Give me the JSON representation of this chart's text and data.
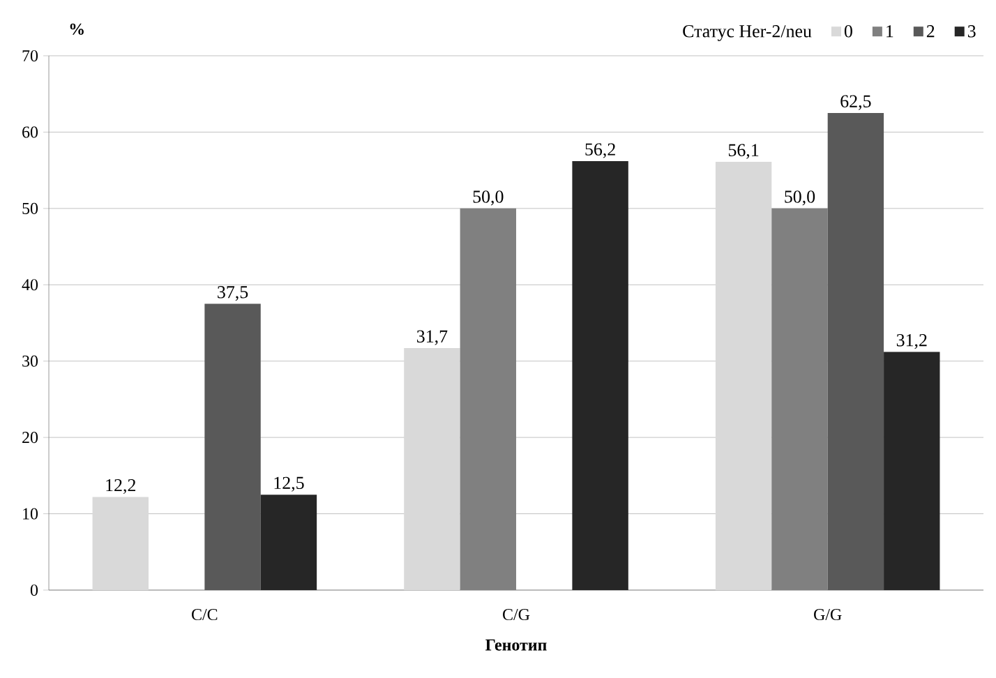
{
  "chart_data": {
    "type": "bar",
    "xlabel": "Генотип",
    "ylabel": "%",
    "legend_title": "Статус Her-2/neu",
    "categories": [
      "C/C",
      "C/G",
      "G/G"
    ],
    "series": [
      {
        "name": "0",
        "color": "#d9d9d9",
        "values": [
          12.2,
          31.7,
          56.1
        ],
        "value_labels": [
          "12,2",
          "31,7",
          "56,1"
        ]
      },
      {
        "name": "1",
        "color": "#808080",
        "values": [
          null,
          50.0,
          50.0
        ],
        "value_labels": [
          null,
          "50,0",
          "50,0"
        ]
      },
      {
        "name": "2",
        "color": "#595959",
        "values": [
          37.5,
          null,
          62.5
        ],
        "value_labels": [
          "37,5",
          null,
          "62,5"
        ]
      },
      {
        "name": "3",
        "color": "#262626",
        "values": [
          12.5,
          56.2,
          31.2
        ],
        "value_labels": [
          "12,5",
          "56,2",
          "31,2"
        ]
      }
    ],
    "ylim": [
      0,
      70
    ],
    "yticks": [
      0,
      10,
      20,
      30,
      40,
      50,
      60,
      70
    ],
    "grid": "y",
    "legend": "top right"
  }
}
